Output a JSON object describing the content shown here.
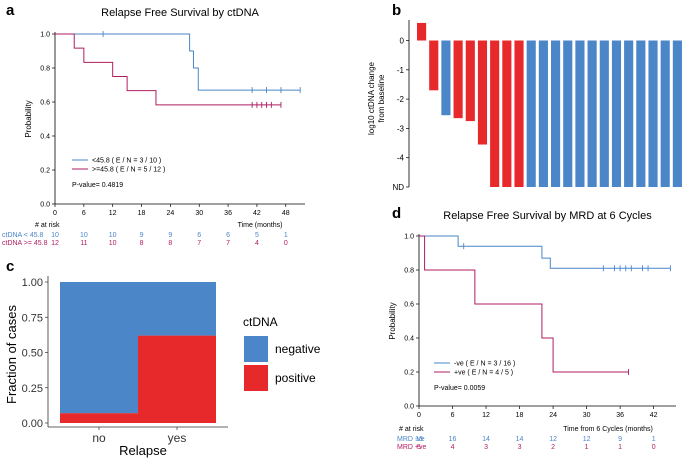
{
  "colors": {
    "blue": "#4a86c8",
    "crimson": "#b01e62",
    "red": "#e8292b",
    "bar_blue": "#4a86c8",
    "axis": "#000000"
  },
  "chart_data": [
    {
      "panel": "a",
      "type": "line",
      "title": "Relapse Free Survival by ctDNA",
      "xlabel": "Time (months)",
      "ylabel": "Probability",
      "xlim": [
        0,
        52
      ],
      "ylim": [
        0,
        1
      ],
      "xticks": [
        0,
        6,
        12,
        18,
        24,
        30,
        36,
        42,
        48
      ],
      "yticks": [
        0.0,
        0.2,
        0.4,
        0.6,
        0.8,
        1.0
      ],
      "series": [
        {
          "name": "<45.8",
          "legend": "<45.8  ( E / N = 3 / 10 )",
          "color_key": "blue",
          "steps": [
            [
              0,
              1.0
            ],
            [
              28,
              0.9
            ],
            [
              28.8,
              0.8
            ],
            [
              29.8,
              0.67
            ],
            [
              51,
              0.67
            ]
          ],
          "censor": [
            10,
            41,
            44,
            47,
            51
          ]
        },
        {
          "name": ">=45.8",
          "legend": ">=45.8  ( E / N = 5 / 12 )",
          "color_key": "crimson",
          "steps": [
            [
              0,
              1.0
            ],
            [
              4,
              0.917
            ],
            [
              6,
              0.833
            ],
            [
              12,
              0.75
            ],
            [
              15,
              0.667
            ],
            [
              21,
              0.583
            ],
            [
              47,
              0.583
            ]
          ],
          "censor": [
            41,
            42,
            43,
            44,
            45,
            47
          ]
        }
      ],
      "pvalue": "P-value= 0.4819",
      "risk_table": {
        "header": "# at risk",
        "rows": [
          {
            "label": "ctDNA < 45.8",
            "color_key": "blue",
            "values": [
              "10",
              "10",
              "10",
              "9",
              "9",
              "6",
              "6",
              "5",
              "1"
            ]
          },
          {
            "label": "ctDNA >= 45.8",
            "color_key": "crimson",
            "values": [
              "12",
              "11",
              "10",
              "8",
              "8",
              "7",
              "7",
              "4",
              "0"
            ]
          }
        ]
      }
    },
    {
      "panel": "b",
      "type": "bar",
      "ylabel": "log10 ctDNA change\nfrom baseline",
      "yticks": [
        "0",
        "-1",
        "-2",
        "-3",
        "-4",
        "ND"
      ],
      "ylim": [
        -5,
        0.7
      ],
      "values": [
        0.6,
        -1.7,
        -2.55,
        -2.65,
        -2.75,
        -3.55,
        -5,
        -5,
        -5,
        -5,
        -5,
        -5,
        -5,
        -5,
        -5,
        -5,
        -5,
        -5,
        -5,
        -5,
        -5,
        -5
      ],
      "colors": [
        "red",
        "red",
        "blue",
        "red",
        "red",
        "red",
        "red",
        "red",
        "red",
        "blue",
        "blue",
        "blue",
        "blue",
        "blue",
        "blue",
        "blue",
        "blue",
        "blue",
        "blue",
        "blue",
        "blue",
        "blue"
      ]
    },
    {
      "panel": "c",
      "type": "bar",
      "stacked": true,
      "categories": [
        "no",
        "yes"
      ],
      "xlabel": "Relapse",
      "ylabel": "Fraction of cases",
      "ylim": [
        0,
        1
      ],
      "yticks": [
        "0.00",
        "0.25",
        "0.50",
        "0.75",
        "1.00"
      ],
      "series": [
        {
          "name": "positive",
          "color_key": "red",
          "values": [
            0.07,
            0.62
          ]
        },
        {
          "name": "negative",
          "color_key": "blue",
          "values": [
            0.93,
            0.38
          ]
        }
      ],
      "legend_title": "ctDNA",
      "legend": [
        {
          "name": "negative",
          "color_key": "blue"
        },
        {
          "name": "positive",
          "color_key": "red"
        }
      ]
    },
    {
      "panel": "d",
      "type": "line",
      "title": "Relapse Free Survival by MRD at 6 Cycles",
      "xlabel": "Time from 6 Cycles (months)",
      "ylabel": "Probability",
      "xlim": [
        0,
        46
      ],
      "ylim": [
        0,
        1
      ],
      "xticks": [
        0,
        6,
        12,
        18,
        24,
        30,
        36,
        42
      ],
      "yticks": [
        0.0,
        0.2,
        0.4,
        0.6,
        0.8,
        1.0
      ],
      "series": [
        {
          "name": "-ve",
          "legend": "-ve  ( E / N = 3 / 16 )",
          "color_key": "blue",
          "steps": [
            [
              0,
              1.0
            ],
            [
              7,
              0.94
            ],
            [
              22,
              0.87
            ],
            [
              23.5,
              0.81
            ],
            [
              45,
              0.81
            ]
          ],
          "censor": [
            8,
            33,
            35,
            36,
            37,
            38,
            40,
            41,
            45
          ]
        },
        {
          "name": "+ve",
          "legend": "+ve  ( E / N = 4 / 5 )",
          "color_key": "crimson",
          "steps": [
            [
              0,
              1.0
            ],
            [
              1,
              0.8
            ],
            [
              10,
              0.6
            ],
            [
              22,
              0.4
            ],
            [
              24,
              0.2
            ],
            [
              37.5,
              0.2
            ]
          ],
          "censor": [
            37.5
          ]
        }
      ],
      "pvalue": "P-value= 0.0059",
      "risk_table": {
        "header": "# at risk",
        "rows": [
          {
            "label": "MRD -ve",
            "color_key": "blue",
            "values": [
              "16",
              "16",
              "14",
              "14",
              "12",
              "12",
              "9",
              "1"
            ]
          },
          {
            "label": "MRD +ve",
            "color_key": "crimson",
            "values": [
              "5",
              "4",
              "3",
              "3",
              "2",
              "1",
              "1",
              "0"
            ]
          }
        ]
      }
    }
  ],
  "panel_labels": [
    "a",
    "b",
    "c",
    "d"
  ]
}
